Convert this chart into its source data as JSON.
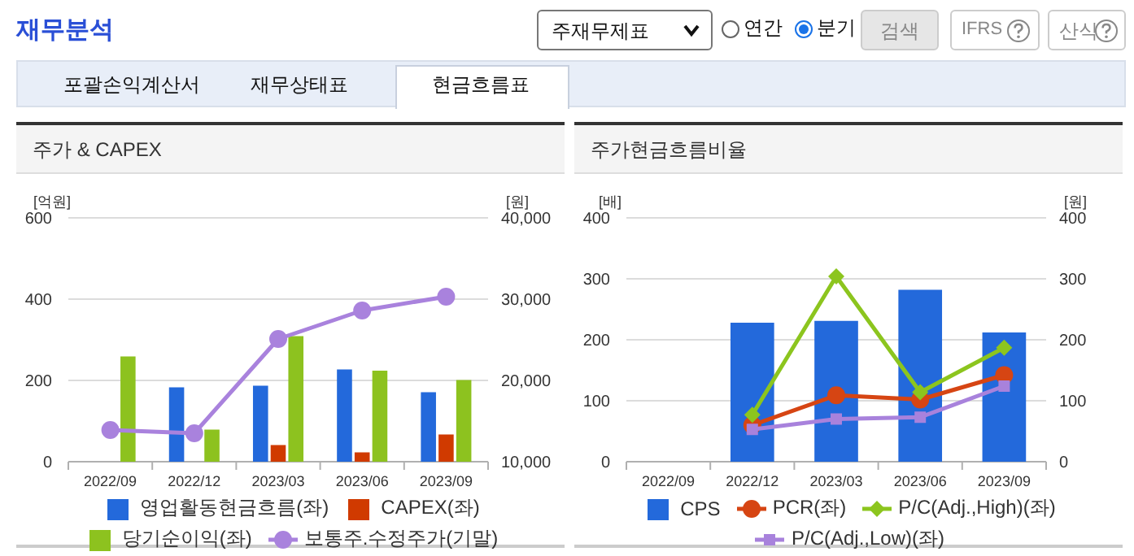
{
  "chart_data": [
    {
      "type": "other",
      "title": "재무분석",
      "annotations": [
        "주재무제표",
        "연간",
        "분기",
        "검색",
        "IFRS",
        "산식",
        "포괄손익계산서",
        "재무상태표",
        "현금흐름표"
      ]
    },
    {
      "type": "bar",
      "title": "주가 & CAPEX",
      "ylabel": "[억원]",
      "y2label": "[원]",
      "categories": [
        "2022/09",
        "2022/12",
        "2023/03",
        "2023/06",
        "2023/09"
      ],
      "series": [
        {
          "name": "영업활동현금흐름(좌)",
          "type": "bar",
          "color": "#2369db",
          "values": [
            null,
            183,
            187,
            227,
            171
          ]
        },
        {
          "name": "CAPEX(좌)",
          "type": "bar",
          "color": "#d03a00",
          "values": [
            null,
            null,
            41,
            23,
            67
          ]
        },
        {
          "name": "당기순이익(좌)",
          "type": "bar",
          "color": "#8dc21f",
          "values": [
            259,
            79,
            309,
            224,
            201
          ]
        },
        {
          "name": "보통주.수정주가(기말)",
          "type": "line",
          "axis": "y2",
          "color": "#a982dd",
          "marker": "circle",
          "values": [
            13900,
            13500,
            25100,
            28600,
            30300
          ]
        }
      ],
      "ylim": [
        0,
        600
      ],
      "yticks": [
        0,
        200,
        400,
        600
      ],
      "y2lim": [
        10000,
        40000
      ],
      "y2ticks": [
        {
          "value": 10000,
          "label": "10,000"
        },
        {
          "value": 20000,
          "label": "20,000"
        },
        {
          "value": 30000,
          "label": "30,000"
        },
        {
          "value": 40000,
          "label": "40,000"
        }
      ],
      "grid": "y",
      "legend": "bottom"
    },
    {
      "type": "bar",
      "title": "주가현금흐름비율",
      "ylabel": "[배]",
      "y2label": "[원]",
      "categories": [
        "2022/09",
        "2022/12",
        "2023/03",
        "2023/06",
        "2023/09"
      ],
      "series": [
        {
          "name": "CPS",
          "type": "bar",
          "axis": "y2",
          "color": "#2369db",
          "values": [
            null,
            228,
            231,
            282,
            212
          ]
        },
        {
          "name": "PCR(좌)",
          "type": "line",
          "color": "#d64513",
          "marker": "circle",
          "values": [
            null,
            60,
            109,
            102,
            142
          ]
        },
        {
          "name": "P/C(Adj.,High)(좌)",
          "type": "line",
          "color": "#8cc51e",
          "marker": "diamond",
          "values": [
            null,
            77,
            304,
            114,
            187
          ]
        },
        {
          "name": "P/C(Adj.,Low)(좌)",
          "type": "line",
          "color": "#a882dc",
          "marker": "square",
          "values": [
            null,
            53,
            70,
            73,
            124
          ]
        }
      ],
      "ylim": [
        0,
        400
      ],
      "yticks": [
        0,
        100,
        200,
        300,
        400
      ],
      "y2lim": [
        0,
        400
      ],
      "y2ticks": [
        0,
        100,
        200,
        300,
        400
      ],
      "grid": "y",
      "legend": "bottom"
    }
  ]
}
